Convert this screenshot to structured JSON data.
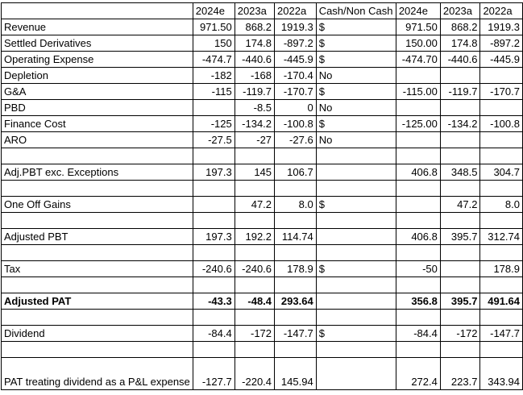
{
  "headers": [
    "",
    "2024e",
    "2023a",
    "2022a",
    "Cash/Non Cash",
    "2024e",
    "2023a",
    "2022a"
  ],
  "rows": [
    {
      "type": "data",
      "cells": [
        "Revenue",
        "971.50",
        "868.2",
        "1919.3",
        "$",
        "971.50",
        "868.2",
        "1919.3"
      ]
    },
    {
      "type": "data",
      "cells": [
        "Settled Derivatives",
        "150",
        "174.8",
        "-897.2",
        "$",
        "150.00",
        "174.8",
        "-897.2"
      ]
    },
    {
      "type": "data",
      "cells": [
        "Operating Expense",
        "-474.7",
        "-440.6",
        "-445.9",
        "$",
        "-474.70",
        "-440.6",
        "-445.9"
      ]
    },
    {
      "type": "data",
      "cells": [
        "Depletion",
        "-182",
        "-168",
        "-170.4",
        "No",
        "",
        "",
        ""
      ]
    },
    {
      "type": "data",
      "cells": [
        "G&A",
        "-115",
        "-119.7",
        "-170.7",
        "$",
        "-115.00",
        "-119.7",
        "-170.7"
      ]
    },
    {
      "type": "data",
      "cells": [
        "PBD",
        "",
        "-8.5",
        "0",
        "No",
        "",
        "",
        ""
      ]
    },
    {
      "type": "data",
      "cells": [
        "Finance Cost",
        "-125",
        "-134.2",
        "-100.8",
        "$",
        "-125.00",
        "-134.2",
        "-100.8"
      ]
    },
    {
      "type": "data",
      "cells": [
        "ARO",
        "-27.5",
        "-27",
        "-27.6",
        "No",
        "",
        "",
        ""
      ]
    },
    {
      "type": "blank"
    },
    {
      "type": "data",
      "cells": [
        "Adj.PBT exc. Exceptions",
        "197.3",
        "145",
        "106.7",
        "",
        "406.8",
        "348.5",
        "304.7"
      ]
    },
    {
      "type": "blank"
    },
    {
      "type": "data",
      "cells": [
        "One Off Gains",
        "",
        "47.2",
        "8.0",
        "$",
        "",
        "47.2",
        "8.0"
      ]
    },
    {
      "type": "blank"
    },
    {
      "type": "data",
      "cells": [
        "Adjusted PBT",
        "197.3",
        "192.2",
        "114.74",
        "",
        "406.8",
        "395.7",
        "312.74"
      ]
    },
    {
      "type": "blank"
    },
    {
      "type": "data",
      "cells": [
        "Tax",
        "-240.6",
        "-240.6",
        "178.9",
        "$",
        "-50",
        "",
        "178.9"
      ]
    },
    {
      "type": "blank"
    },
    {
      "type": "data",
      "bold": true,
      "cells": [
        "Adjusted PAT",
        "-43.3",
        "-48.4",
        "293.64",
        "",
        "356.8",
        "395.7",
        "491.64"
      ]
    },
    {
      "type": "blank"
    },
    {
      "type": "data",
      "cells": [
        "Dividend",
        "-84.4",
        "-172",
        "-147.7",
        "$",
        "-84.4",
        "-172",
        "-147.7"
      ]
    },
    {
      "type": "blank"
    },
    {
      "type": "data",
      "tall": true,
      "cells": [
        "PAT treating dividend as a P&L expense",
        "-127.7",
        "-220.4",
        "145.94",
        "",
        "272.4",
        "223.7",
        "343.94"
      ]
    }
  ]
}
